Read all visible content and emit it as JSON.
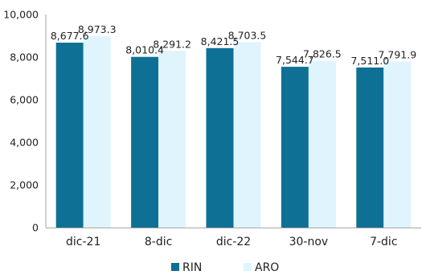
{
  "chart_data": {
    "type": "bar",
    "categories": [
      "dic-21",
      "8-dic",
      "dic-22",
      "30-nov",
      "7-dic"
    ],
    "series": [
      {
        "name": "RIN",
        "values": [
          8677.6,
          8010.4,
          8421.5,
          7544.7,
          7511.0
        ],
        "labels": [
          "8,677.6",
          "8,010.4",
          "8,421.5",
          "7,544.7",
          "7,511.0"
        ],
        "color": "#0e7094"
      },
      {
        "name": "ARO",
        "values": [
          8973.3,
          8291.2,
          8703.5,
          7826.5,
          7791.9
        ],
        "labels": [
          "8,973.3",
          "8,291.2",
          "8,703.5",
          "7,826.5",
          "7,791.9"
        ],
        "color": "#dff4fc"
      }
    ],
    "ylim": [
      0,
      10000
    ],
    "yticks": [
      0,
      2000,
      4000,
      6000,
      8000,
      10000
    ],
    "ytick_labels": [
      "0",
      "2,000",
      "4,000",
      "6,000",
      "8,000",
      "10,000"
    ],
    "legend_position": "bottom",
    "grid": false,
    "axis_color": "#a6a6a6"
  }
}
